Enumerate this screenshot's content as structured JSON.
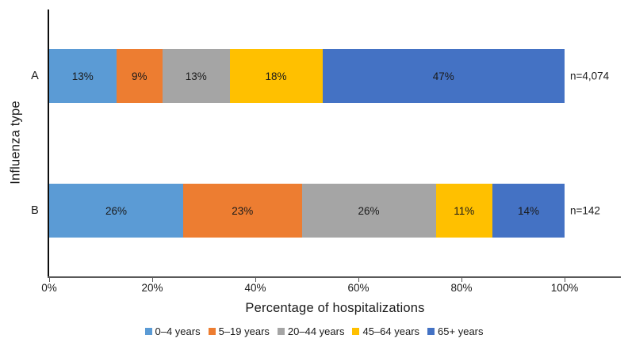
{
  "chart_data": {
    "type": "bar",
    "variant": "horizontal-stacked",
    "title": "",
    "xlabel": "Percentage of hospitalizations",
    "ylabel": "Influenza type",
    "categories": [
      "A",
      "B"
    ],
    "series": [
      {
        "name": "0–4 years",
        "color": "#5B9BD5",
        "values": [
          13,
          26
        ],
        "labels": [
          "13%",
          "26%"
        ]
      },
      {
        "name": "5–19 years",
        "color": "#ED7D31",
        "values": [
          9,
          23
        ],
        "labels": [
          "9%",
          "23%"
        ]
      },
      {
        "name": "20–44 years",
        "color": "#A5A5A5",
        "values": [
          13,
          26
        ],
        "labels": [
          "13%",
          "26%"
        ]
      },
      {
        "name": "45–64 years",
        "color": "#FFC000",
        "values": [
          18,
          11
        ],
        "labels": [
          "18%",
          "11%"
        ]
      },
      {
        "name": "65+ years",
        "color": "#4472C4",
        "values": [
          47,
          14
        ],
        "labels": [
          "47%",
          "14%"
        ]
      }
    ],
    "category_annotations": [
      "n=4,074",
      "n=142"
    ],
    "xlim": [
      0,
      100
    ],
    "x_tick_values": [
      0,
      20,
      40,
      60,
      80,
      100
    ],
    "x_tick_labels": [
      "0%",
      "20%",
      "40%",
      "60%",
      "80%",
      "100%"
    ],
    "grid": false,
    "legend_position": "bottom"
  }
}
